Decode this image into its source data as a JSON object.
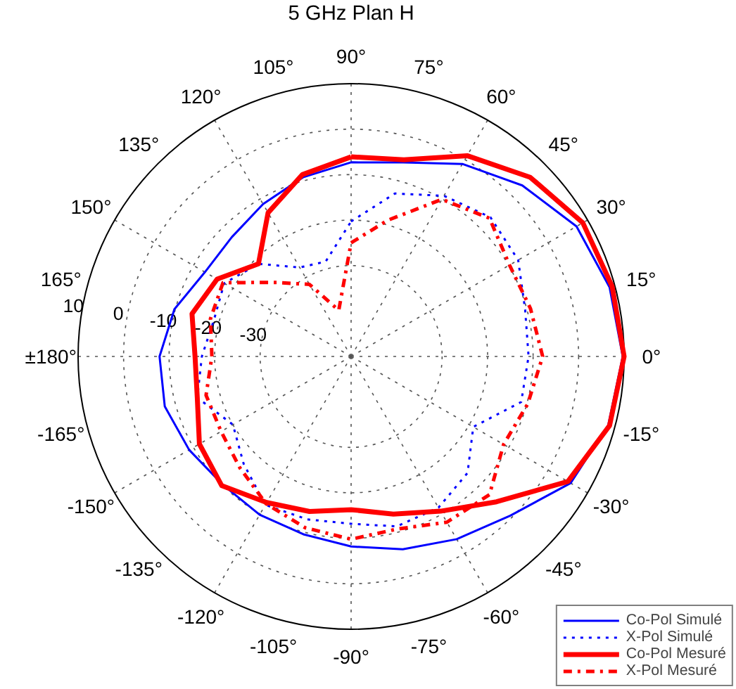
{
  "chart_data": {
    "type": "radar",
    "title": "5 GHz Plan H",
    "categories": [
      "90°",
      "75°",
      "60°",
      "45°",
      "30°",
      "15°",
      "0°",
      "-15°",
      "-30°",
      "-45°",
      "-60°",
      "-75°",
      "-90°",
      "-105°",
      "-120°",
      "-135°",
      "-150°",
      "-165°",
      "±180°",
      "165°",
      "150°",
      "135°",
      "120°",
      "105°"
    ],
    "ylim": [
      -50,
      10
    ],
    "yticks": [
      -30,
      -20,
      -10,
      0,
      10
    ],
    "grid": true,
    "legend": "bottom right",
    "series": [
      {
        "name": "Co-Pol Simulé",
        "color": "#0000ff",
        "line_style": "solid",
        "values": [
          -7.3,
          -5.8,
          -1.1,
          3.2,
          7.2,
          8.8,
          9.7,
          8.5,
          5.7,
          -0.5,
          -3.6,
          -6.1,
          -8.2,
          -9.5,
          -9.8,
          -10.1,
          -8.9,
          -7.6,
          -7.9,
          -9.8,
          -12.9,
          -12.9,
          -11.3,
          -9.2
        ]
      },
      {
        "name": "X-Pol Simulé",
        "color": "#0000ff",
        "line_style": "dotted",
        "values": [
          -20.3,
          -12.9,
          -9.2,
          -6.7,
          -7.6,
          -10.4,
          -11,
          -11.3,
          -19,
          -13.8,
          -11.6,
          -11.3,
          -13.2,
          -12.9,
          -12.3,
          -16.6,
          -20,
          -15,
          -17.2,
          -18.8,
          -17.8,
          -21.2,
          -27.4,
          -28.4
        ]
      },
      {
        "name": "Co-Pol Mesuré",
        "color": "#ff0000",
        "line_style": "solid",
        "values": [
          -6.1,
          -5.2,
          1,
          5.7,
          8.8,
          9.4,
          10,
          8.8,
          5,
          -4.8,
          -10.7,
          -14.1,
          -16.3,
          -14.7,
          -12.9,
          -9.8,
          -11.5,
          -15,
          -15.7,
          -13.8,
          -16,
          -21.2,
          -13.5,
          -8.6
        ]
      },
      {
        "name": "X-Pol Mesuré",
        "color": "#ff0000",
        "line_style": "dashdot",
        "values": [
          -25,
          -19,
          -10.1,
          -7,
          -9.8,
          -9.2,
          -7.9,
          -9.8,
          -11.3,
          -7,
          -7.9,
          -10.7,
          -9.8,
          -11,
          -12.6,
          -15.4,
          -17,
          -17,
          -19.4,
          -18,
          -17.5,
          -27,
          -31.7,
          -39.5
        ]
      }
    ]
  }
}
